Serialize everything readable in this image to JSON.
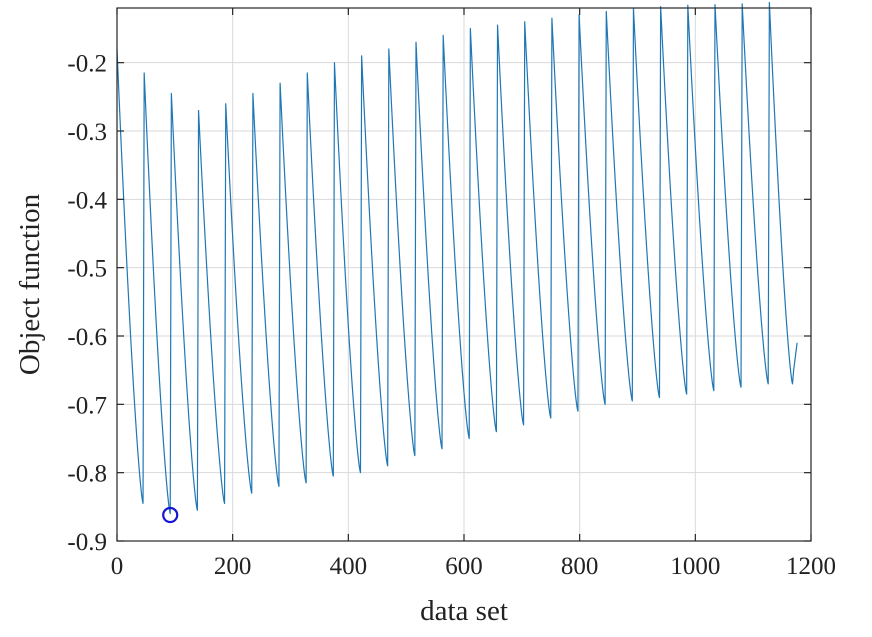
{
  "chart_data": {
    "type": "line",
    "title": "",
    "xlabel": "data set",
    "ylabel": "Object function",
    "xlim": [
      0,
      1200
    ],
    "ylim": [
      -0.9,
      -0.12
    ],
    "xticks": [
      0,
      200,
      400,
      600,
      800,
      1000,
      1200
    ],
    "xtick_labels": [
      "0",
      "200",
      "400",
      "600",
      "800",
      "1000",
      "1200"
    ],
    "yticks": [
      -0.9,
      -0.8,
      -0.7,
      -0.6,
      -0.5,
      -0.4,
      -0.3,
      -0.2
    ],
    "ytick_labels": [
      "-0.9",
      "-0.8",
      "-0.7",
      "-0.6",
      "-0.5",
      "-0.4",
      "-0.3",
      "-0.2"
    ],
    "grid": true,
    "series": [
      {
        "name": "Object function",
        "color": "#1f77b4",
        "cycle_starts": [
          0,
          47,
          94,
          141,
          188,
          235,
          282,
          329,
          376,
          423,
          470,
          517,
          564,
          611,
          658,
          705,
          752,
          799,
          846,
          893,
          940,
          987,
          1034,
          1081,
          1128
        ],
        "peak_values": [
          -0.18,
          -0.215,
          -0.245,
          -0.27,
          -0.26,
          -0.245,
          -0.23,
          -0.215,
          -0.2,
          -0.19,
          -0.18,
          -0.17,
          -0.16,
          -0.15,
          -0.145,
          -0.14,
          -0.135,
          -0.13,
          -0.125,
          -0.12,
          -0.118,
          -0.116,
          -0.115,
          -0.114,
          -0.112
        ],
        "trough_values": [
          -0.845,
          -0.86,
          -0.855,
          -0.845,
          -0.83,
          -0.82,
          -0.815,
          -0.805,
          -0.8,
          -0.79,
          -0.775,
          -0.765,
          -0.75,
          -0.74,
          -0.73,
          -0.72,
          -0.71,
          -0.7,
          -0.695,
          -0.69,
          -0.685,
          -0.68,
          -0.675,
          -0.67,
          -0.67
        ],
        "end_value": -0.61
      }
    ],
    "marker": {
      "x": 92,
      "y": -0.862,
      "color": "#1515d4",
      "style": "circle"
    }
  }
}
